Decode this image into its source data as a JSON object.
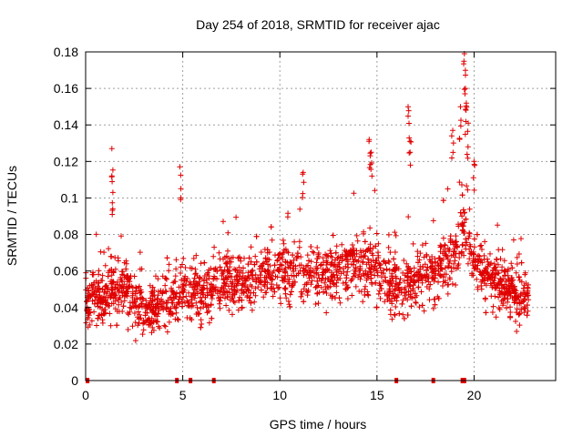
{
  "chart_data": {
    "type": "scatter",
    "title": "Day 254 of 2018, SRMTID for receiver ajac",
    "xlabel": "GPS time / hours",
    "ylabel": "SRMTID / TECUs",
    "xlim": [
      0,
      24.2
    ],
    "ylim": [
      0,
      0.18
    ],
    "x_ticks": [
      0,
      5,
      10,
      15,
      20
    ],
    "x_tick_labels": [
      "0",
      "5",
      "10",
      "15",
      "20"
    ],
    "y_ticks": [
      0,
      0.02,
      0.04,
      0.06,
      0.08,
      0.1,
      0.12,
      0.14,
      0.16,
      0.18
    ],
    "y_tick_labels": [
      "0",
      "0.02",
      "0.04",
      "0.06",
      "0.08",
      "0.1",
      "0.12",
      "0.14",
      "0.16",
      "0.18"
    ],
    "grid": true,
    "marker": "plus",
    "color": "#e00000",
    "series": [
      {
        "name": "SRMTID",
        "points_count": 2400,
        "baseline_profile": [
          {
            "x": 0.0,
            "y": 0.045
          },
          {
            "x": 1.0,
            "y": 0.048
          },
          {
            "x": 2.0,
            "y": 0.052
          },
          {
            "x": 3.0,
            "y": 0.038
          },
          {
            "x": 4.0,
            "y": 0.042
          },
          {
            "x": 5.0,
            "y": 0.05
          },
          {
            "x": 6.0,
            "y": 0.048
          },
          {
            "x": 7.0,
            "y": 0.055
          },
          {
            "x": 8.0,
            "y": 0.052
          },
          {
            "x": 9.0,
            "y": 0.058
          },
          {
            "x": 10.0,
            "y": 0.06
          },
          {
            "x": 11.0,
            "y": 0.058
          },
          {
            "x": 12.0,
            "y": 0.057
          },
          {
            "x": 13.0,
            "y": 0.058
          },
          {
            "x": 14.0,
            "y": 0.065
          },
          {
            "x": 15.0,
            "y": 0.058
          },
          {
            "x": 16.0,
            "y": 0.05
          },
          {
            "x": 17.0,
            "y": 0.055
          },
          {
            "x": 18.0,
            "y": 0.06
          },
          {
            "x": 19.0,
            "y": 0.07
          },
          {
            "x": 19.5,
            "y": 0.085
          },
          {
            "x": 20.0,
            "y": 0.065
          },
          {
            "x": 21.0,
            "y": 0.058
          },
          {
            "x": 22.0,
            "y": 0.048
          },
          {
            "x": 22.8,
            "y": 0.045
          }
        ],
        "x_range": [
          0.0,
          22.8
        ],
        "outliers": [
          {
            "x": 1.35,
            "y": 0.127
          },
          {
            "x": 1.4,
            "y": 0.103
          },
          {
            "x": 4.85,
            "y": 0.117
          },
          {
            "x": 11.2,
            "y": 0.114
          },
          {
            "x": 14.6,
            "y": 0.132
          },
          {
            "x": 14.7,
            "y": 0.125
          },
          {
            "x": 16.6,
            "y": 0.15
          },
          {
            "x": 16.7,
            "y": 0.131
          },
          {
            "x": 18.9,
            "y": 0.137
          },
          {
            "x": 19.3,
            "y": 0.15
          },
          {
            "x": 19.5,
            "y": 0.179
          },
          {
            "x": 19.55,
            "y": 0.16
          },
          {
            "x": 19.6,
            "y": 0.152
          },
          {
            "x": 19.7,
            "y": 0.141
          },
          {
            "x": 20.0,
            "y": 0.12
          }
        ],
        "zero_values_x": [
          0.1,
          4.7,
          5.4,
          6.6,
          16.0,
          17.9,
          19.4,
          19.5
        ]
      }
    ]
  }
}
